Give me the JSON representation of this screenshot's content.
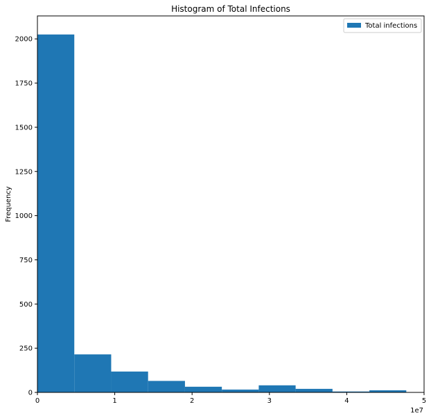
{
  "chart_data": {
    "type": "bar",
    "title": "Histogram of Total Infections",
    "xlabel": "",
    "ylabel": "Frequency",
    "x_offset_text": "1e7",
    "xlim": [
      0,
      5
    ],
    "ylim": [
      0,
      2130
    ],
    "xticks": [
      0,
      1,
      2,
      3,
      4,
      5
    ],
    "yticks": [
      0,
      250,
      500,
      750,
      1000,
      1250,
      1500,
      1750,
      2000
    ],
    "bin_edges": [
      0,
      0.477,
      0.954,
      1.431,
      1.908,
      2.385,
      2.862,
      3.339,
      3.816,
      4.293,
      4.77
    ],
    "series": [
      {
        "name": "Total infections",
        "values": [
          2025,
          215,
          118,
          65,
          32,
          16,
          40,
          20,
          5,
          12
        ]
      }
    ],
    "grid": false,
    "legend_position": "top-right",
    "colors": {
      "bar": "#1f77b4",
      "axes": "#000000",
      "background": "#ffffff"
    }
  }
}
